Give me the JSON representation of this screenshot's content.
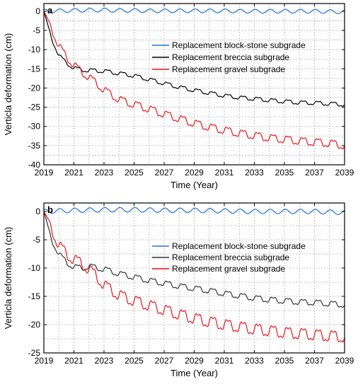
{
  "chart_data": [
    {
      "panel_label": "a",
      "type": "line",
      "xlabel": "Time (Year)",
      "ylabel": "Verticla deformation (cm)",
      "xlim": [
        2019,
        2039
      ],
      "ylim": [
        -40,
        2
      ],
      "xticks": [
        2019,
        2021,
        2023,
        2025,
        2027,
        2029,
        2031,
        2033,
        2035,
        2037,
        2039
      ],
      "yticks": [
        0,
        -5,
        -10,
        -15,
        -20,
        -25,
        -30,
        -35,
        -40
      ],
      "grid": true,
      "legend_position": "right, upper-middle",
      "series": [
        {
          "name": "Replacement block-stone subgrade",
          "color": "#1f77d4",
          "x": [
            2019,
            2020,
            2021,
            2022,
            2023,
            2024,
            2025,
            2026,
            2027,
            2028,
            2029,
            2030,
            2031,
            2032,
            2033,
            2034,
            2035,
            2036,
            2037,
            2038,
            2039
          ],
          "y": [
            0,
            0.1,
            0.2,
            0.3,
            0.3,
            0.2,
            0.2,
            0.1,
            0.1,
            0.1,
            0.1,
            0.1,
            0.1,
            0,
            0,
            0,
            0,
            0,
            0,
            -0.1,
            -0.2
          ],
          "seasonal_amplitude": 0.5
        },
        {
          "name": "Replacement breccia subgrade",
          "color": "#000000",
          "x": [
            2019,
            2019.5,
            2020,
            2020.5,
            2021,
            2021.5,
            2022,
            2023,
            2024,
            2025,
            2026,
            2027,
            2028,
            2029,
            2030,
            2031,
            2032,
            2033,
            2034,
            2035,
            2036,
            2037,
            2038,
            2039
          ],
          "y": [
            0,
            -7,
            -11.5,
            -13.5,
            -14.8,
            -15.3,
            -15.4,
            -15.6,
            -16.2,
            -16.8,
            -17.8,
            -18.8,
            -19.8,
            -20.6,
            -21.3,
            -22,
            -22.5,
            -22.8,
            -23.2,
            -23.5,
            -23.8,
            -23.9,
            -24.1,
            -24.3
          ],
          "seasonal_amplitude": 1.0
        },
        {
          "name": "Replacement gravel subgrade",
          "color": "#e8171b",
          "x": [
            2019,
            2019.5,
            2020,
            2020.5,
            2021,
            2021.5,
            2022,
            2022.5,
            2023,
            2023.5,
            2024,
            2025,
            2026,
            2027,
            2028,
            2029,
            2030,
            2031,
            2032,
            2033,
            2034,
            2035,
            2036,
            2037,
            2038,
            2039
          ],
          "y": [
            0,
            -4.5,
            -9,
            -12,
            -14,
            -15.8,
            -17.2,
            -18.8,
            -20.5,
            -21.8,
            -23,
            -24.3,
            -25.5,
            -26.8,
            -28,
            -29.2,
            -30.2,
            -31,
            -31.8,
            -32.4,
            -33,
            -33.4,
            -33.8,
            -34.1,
            -34.4,
            -35
          ],
          "seasonal_amplitude": 2.0
        }
      ]
    },
    {
      "panel_label": "b",
      "type": "line",
      "xlabel": "Time (Year)",
      "ylabel": "Verticla deformation (cm)",
      "xlim": [
        2019,
        2039
      ],
      "ylim": [
        -25,
        1.5
      ],
      "xticks": [
        2019,
        2021,
        2023,
        2025,
        2027,
        2029,
        2031,
        2033,
        2035,
        2037,
        2039
      ],
      "yticks": [
        0,
        -5,
        -10,
        -15,
        -20,
        -25
      ],
      "grid": true,
      "legend_position": "right, upper-middle",
      "series": [
        {
          "name": "Replacement block-stone subgrade",
          "color": "#1f77d4",
          "x": [
            2019,
            2021,
            2023,
            2025,
            2027,
            2029,
            2031,
            2033,
            2035,
            2037,
            2039
          ],
          "y": [
            0,
            0.2,
            0.3,
            0.3,
            0.2,
            0.2,
            0.1,
            0,
            0,
            0,
            -0.2
          ],
          "seasonal_amplitude": 0.4
        },
        {
          "name": "Replacement breccia subgrade",
          "color": "#333333",
          "x": [
            2019,
            2019.5,
            2020,
            2020.5,
            2021,
            2021.5,
            2022,
            2023,
            2024,
            2025,
            2026,
            2027,
            2028,
            2029,
            2030,
            2031,
            2032,
            2033,
            2034,
            2035,
            2036,
            2037,
            2038,
            2039
          ],
          "y": [
            0,
            -5,
            -7.5,
            -9,
            -9.8,
            -10,
            -9.7,
            -10.2,
            -11,
            -11.6,
            -12.2,
            -12.7,
            -13.2,
            -13.6,
            -14,
            -14.5,
            -14.9,
            -15.3,
            -15.6,
            -15.8,
            -16,
            -16.1,
            -16.3,
            -16.5
          ],
          "seasonal_amplitude": 1.0
        },
        {
          "name": "Replacement gravel subgrade",
          "color": "#e8171b",
          "x": [
            2019,
            2019.5,
            2020,
            2020.5,
            2021,
            2021.5,
            2022,
            2022.5,
            2023,
            2024,
            2025,
            2026,
            2027,
            2028,
            2029,
            2030,
            2031,
            2032,
            2033,
            2034,
            2035,
            2036,
            2037,
            2038,
            2039
          ],
          "y": [
            0,
            -3,
            -6,
            -7.5,
            -8.5,
            -9.2,
            -10.2,
            -11.5,
            -13,
            -14.8,
            -15.8,
            -16.6,
            -17.4,
            -18.2,
            -18.9,
            -19.5,
            -20,
            -20.4,
            -20.8,
            -21.1,
            -21.4,
            -21.6,
            -21.8,
            -22,
            -22.2
          ],
          "seasonal_amplitude": 2.0
        }
      ]
    }
  ]
}
